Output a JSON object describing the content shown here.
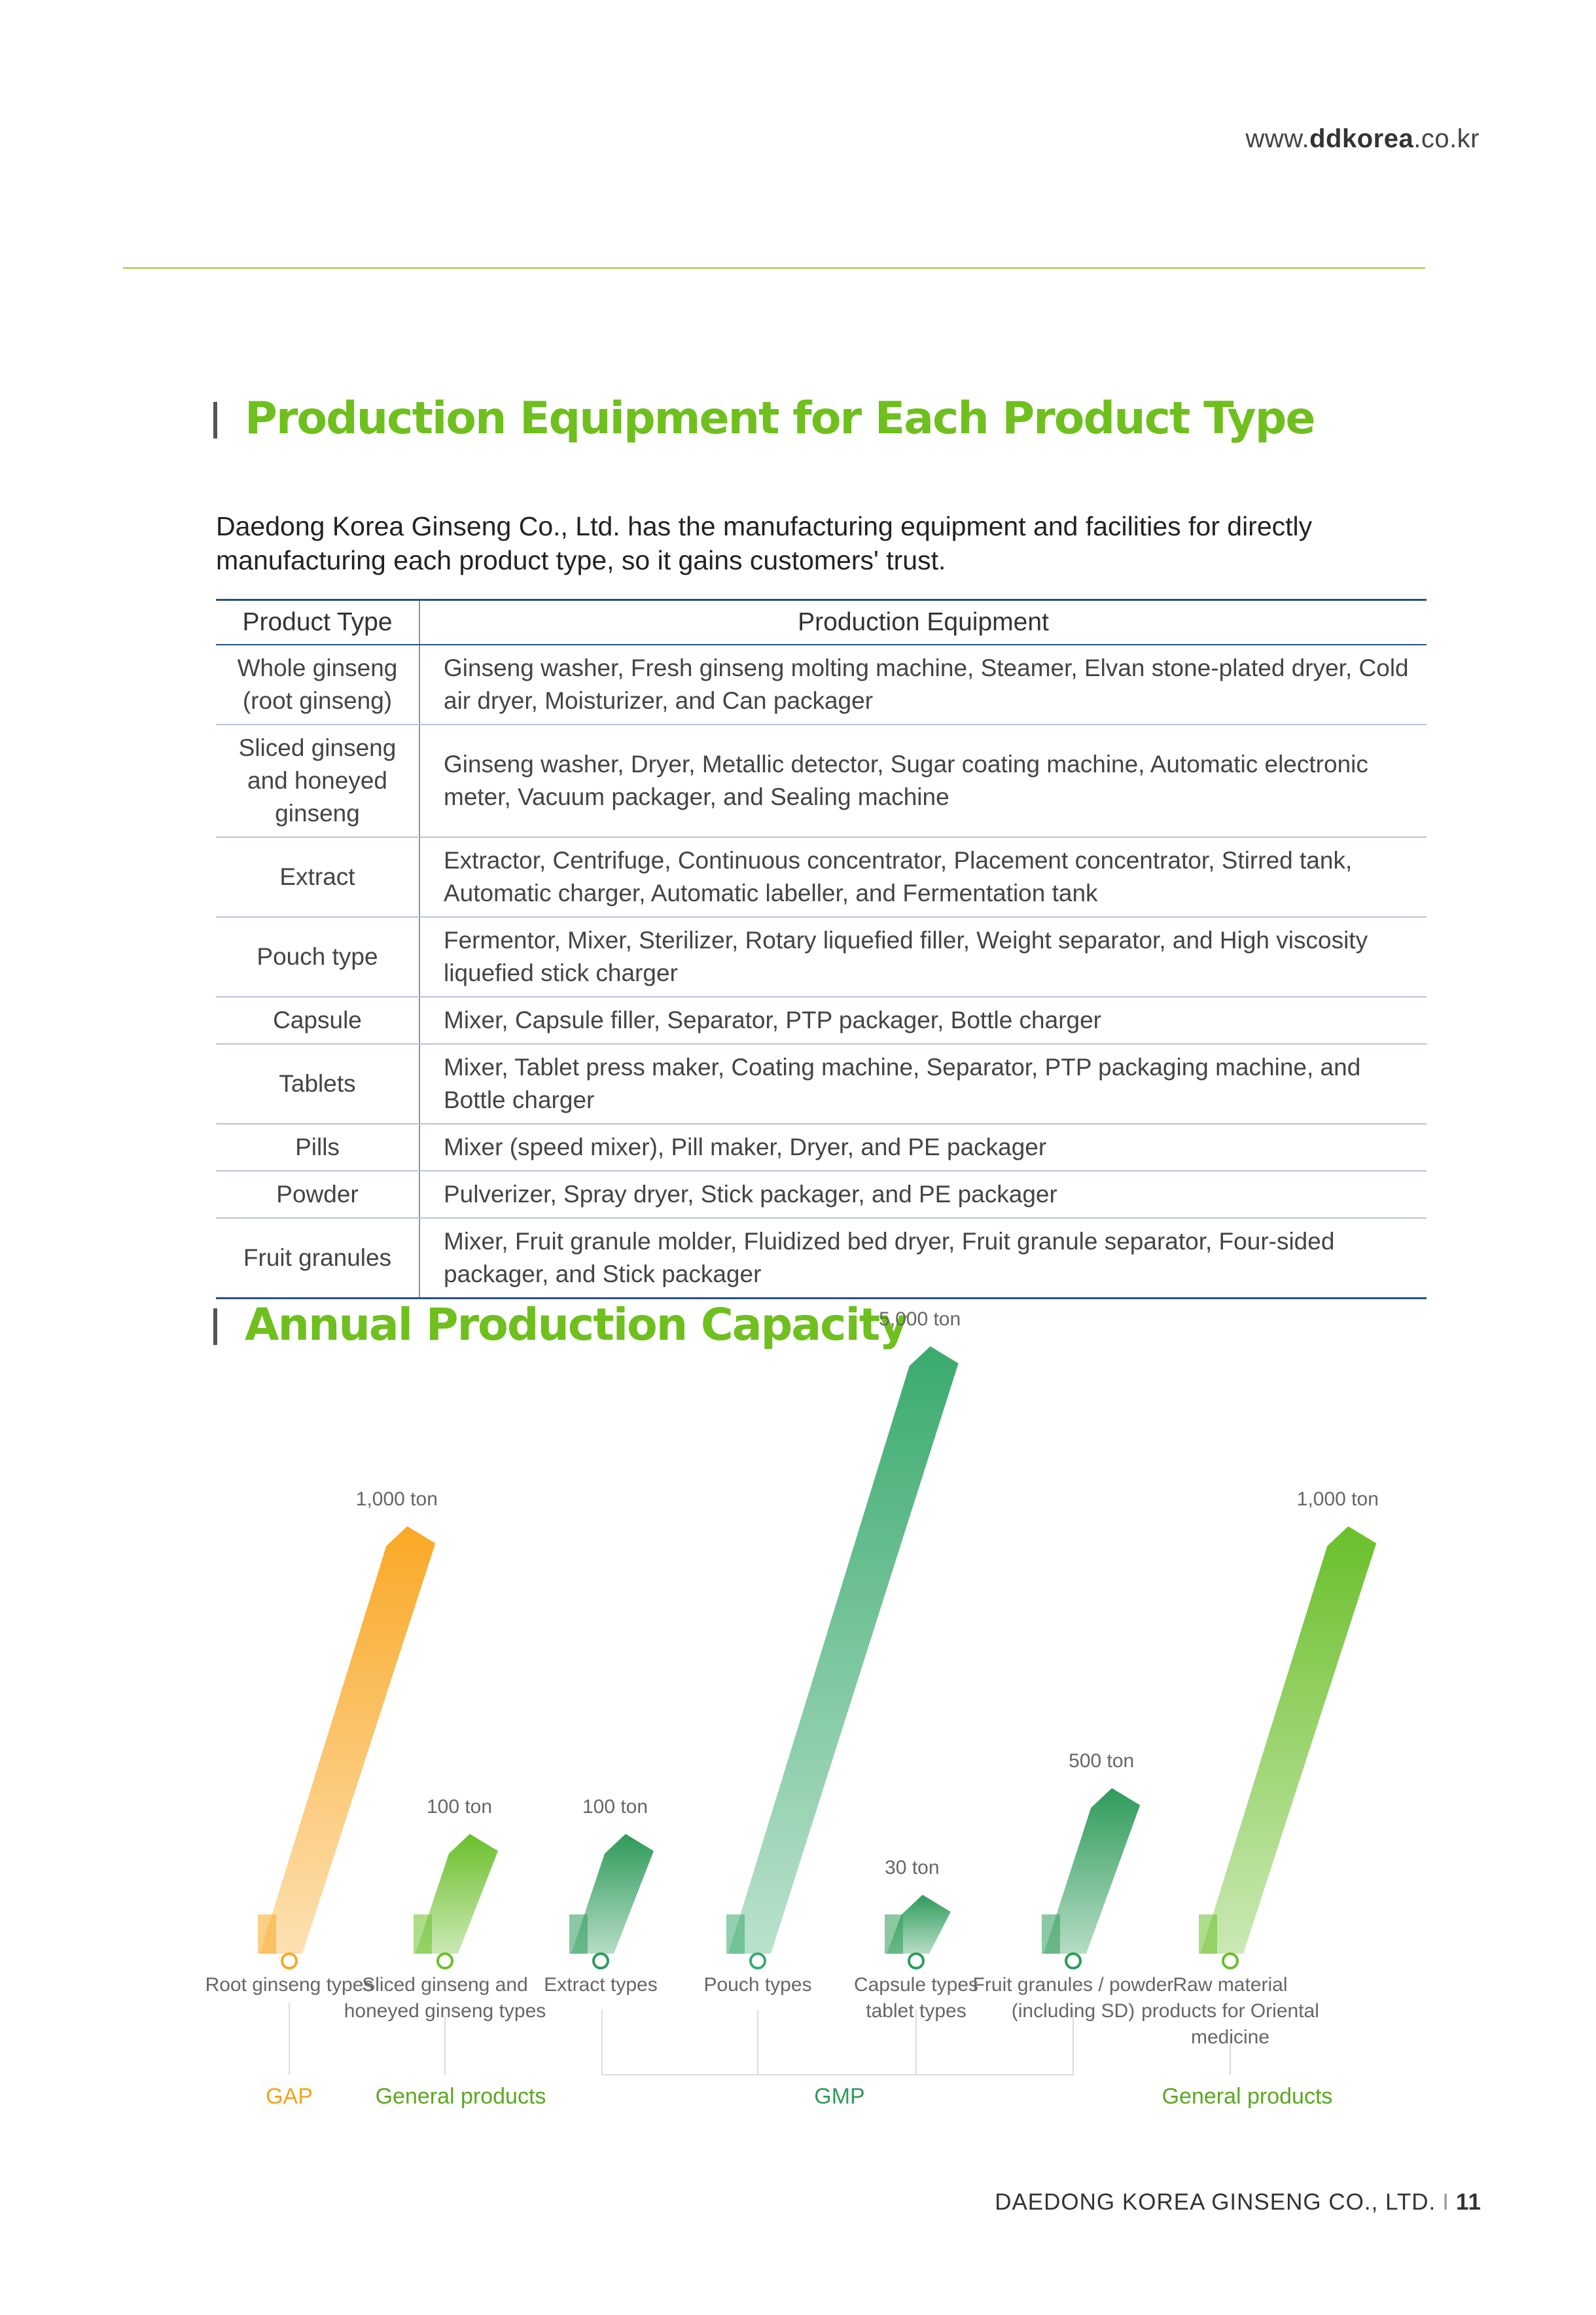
{
  "header": {
    "url_prefix": "www.",
    "url_domain": "ddkorea",
    "url_suffix": ".co.kr"
  },
  "equipment_section": {
    "title": "Production Equipment for Each Product Type",
    "intro": "Daedong Korea Ginseng Co., Ltd. has the manufacturing equipment and facilities for directly manufacturing each product type, so it gains customers' trust.",
    "col_type": "Product Type",
    "col_equipment": "Production Equipment",
    "rows": [
      {
        "type": "Whole ginseng (root ginseng)",
        "equipment": "Ginseng washer, Fresh ginseng molting machine, Steamer, Elvan stone-plated dryer, Cold air dryer, Moisturizer, and Can packager"
      },
      {
        "type": "Sliced ginseng and honeyed ginseng",
        "equipment": "Ginseng washer, Dryer, Metallic detector, Sugar coating machine, Automatic electronic meter, Vacuum packager, and Sealing machine"
      },
      {
        "type": "Extract",
        "equipment": "Extractor, Centrifuge, Continuous concentrator, Placement concentrator, Stirred tank, Automatic charger, Automatic labeller, and Fermentation tank"
      },
      {
        "type": "Pouch type",
        "equipment": "Fermentor, Mixer, Sterilizer, Rotary liquefied filler, Weight separator, and High viscosity liquefied stick charger"
      },
      {
        "type": "Capsule",
        "equipment": "Mixer, Capsule filler, Separator, PTP packager, Bottle charger"
      },
      {
        "type": "Tablets",
        "equipment": "Mixer, Tablet press maker, Coating machine, Separator, PTP packaging machine, and Bottle charger"
      },
      {
        "type": "Pills",
        "equipment": "Mixer (speed mixer), Pill maker, Dryer, and PE packager"
      },
      {
        "type": "Powder",
        "equipment": "Pulverizer, Spray dryer, Stick packager, and PE packager"
      },
      {
        "type": "Fruit granules",
        "equipment": "Mixer, Fruit granule molder, Fluidized bed dryer, Fruit granule separator, Four-sided packager, and Stick packager"
      }
    ]
  },
  "capacity_section": {
    "title": "Annual Production Capacity"
  },
  "chart_data": {
    "type": "bar",
    "title": "Annual Production Capacity",
    "categories": [
      [
        "Root ginseng types"
      ],
      [
        "Sliced ginseng and",
        "honeyed ginseng types"
      ],
      [
        "Extract types"
      ],
      [
        "Pouch types"
      ],
      [
        "Capsule types",
        "tablet types"
      ],
      [
        "Fruit granules / powder",
        "(including SD)"
      ],
      [
        "Raw material",
        "products for Oriental",
        "medicine"
      ]
    ],
    "values": [
      1000,
      100,
      100,
      5000,
      30,
      500,
      1000
    ],
    "value_labels": [
      "1,000 ton",
      "100 ton",
      "100 ton",
      "5,000 ton",
      "30 ton",
      "500 ton",
      "1,000 ton"
    ],
    "colors": [
      "#f9a825",
      "#6abf2a",
      "#2e9b5a",
      "#3aaa6e",
      "#2e9b5a",
      "#2e9b5a",
      "#6abf2a"
    ],
    "groups": [
      {
        "label": "GAP",
        "color": "#f5a21b"
      },
      {
        "label": "General products",
        "color": "#5aa820"
      },
      {
        "label": "GMP",
        "color": "#2e9b5a"
      },
      {
        "label": "General products",
        "color": "#5aa820"
      }
    ]
  },
  "footer": {
    "company": "DAEDONG KOREA GINSENG CO., LTD.",
    "separator": "I",
    "page_number": "11"
  }
}
